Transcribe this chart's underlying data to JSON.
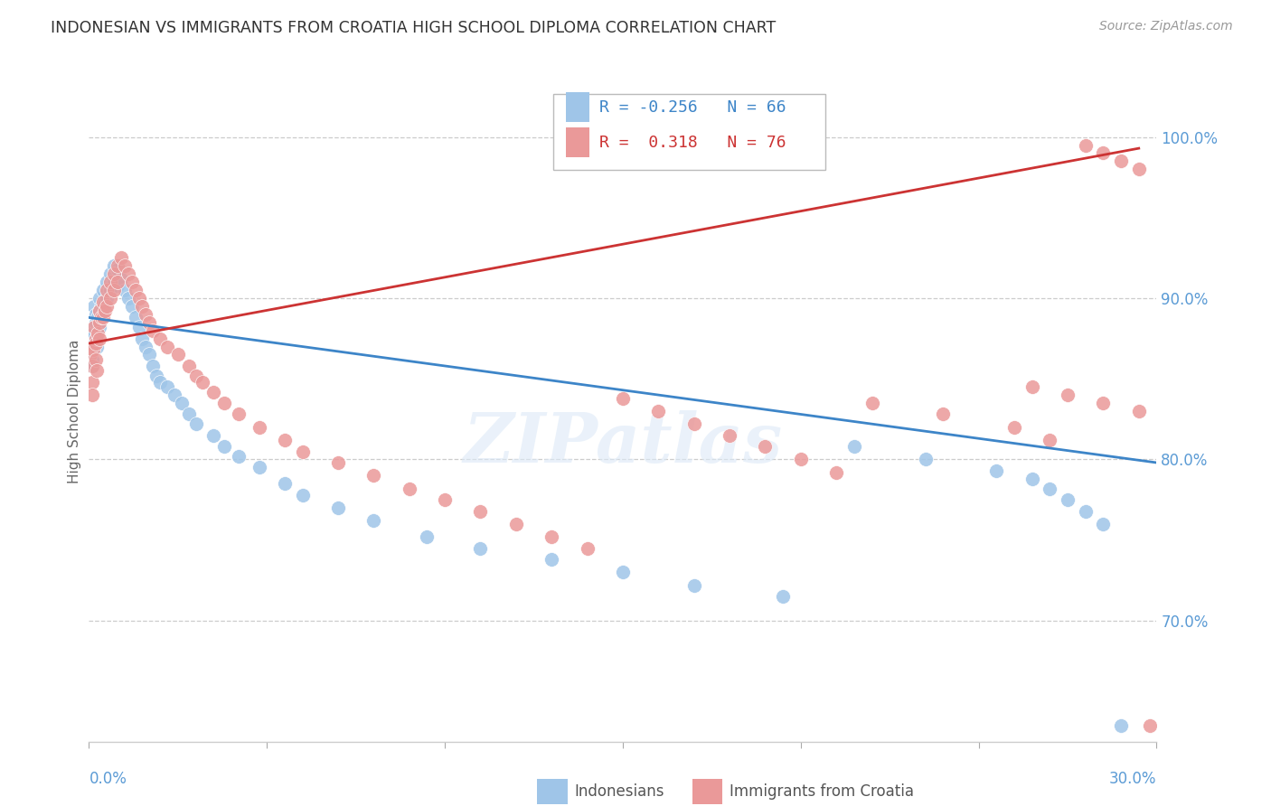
{
  "title": "INDONESIAN VS IMMIGRANTS FROM CROATIA HIGH SCHOOL DIPLOMA CORRELATION CHART",
  "source": "Source: ZipAtlas.com",
  "ylabel": "High School Diploma",
  "ytick_labels": [
    "100.0%",
    "90.0%",
    "80.0%",
    "70.0%"
  ],
  "ytick_values": [
    1.0,
    0.9,
    0.8,
    0.7
  ],
  "xlim": [
    0.0,
    0.3
  ],
  "ylim": [
    0.625,
    1.035
  ],
  "watermark": "ZIPatlas",
  "legend_R1": "-0.256",
  "legend_N1": "66",
  "legend_R2": "0.318",
  "legend_N2": "76",
  "color_blue": "#9fc5e8",
  "color_pink": "#ea9999",
  "trendline_blue": "#3d85c8",
  "trendline_pink": "#cc3333",
  "indonesians_x": [
    0.0005,
    0.0008,
    0.001,
    0.001,
    0.0012,
    0.0015,
    0.0018,
    0.002,
    0.002,
    0.0022,
    0.0025,
    0.003,
    0.003,
    0.003,
    0.0035,
    0.004,
    0.004,
    0.0045,
    0.005,
    0.005,
    0.006,
    0.006,
    0.007,
    0.007,
    0.008,
    0.008,
    0.009,
    0.01,
    0.011,
    0.012,
    0.013,
    0.014,
    0.015,
    0.016,
    0.017,
    0.018,
    0.019,
    0.02,
    0.022,
    0.024,
    0.026,
    0.028,
    0.03,
    0.035,
    0.038,
    0.042,
    0.048,
    0.055,
    0.06,
    0.07,
    0.08,
    0.095,
    0.11,
    0.13,
    0.15,
    0.17,
    0.195,
    0.215,
    0.235,
    0.255,
    0.265,
    0.27,
    0.275,
    0.28,
    0.285,
    0.29
  ],
  "indonesians_y": [
    0.88,
    0.872,
    0.862,
    0.858,
    0.878,
    0.895,
    0.89,
    0.885,
    0.875,
    0.87,
    0.888,
    0.9,
    0.892,
    0.882,
    0.895,
    0.905,
    0.895,
    0.898,
    0.91,
    0.9,
    0.915,
    0.905,
    0.92,
    0.91,
    0.918,
    0.908,
    0.912,
    0.905,
    0.9,
    0.895,
    0.888,
    0.882,
    0.875,
    0.87,
    0.865,
    0.858,
    0.852,
    0.848,
    0.845,
    0.84,
    0.835,
    0.828,
    0.822,
    0.815,
    0.808,
    0.802,
    0.795,
    0.785,
    0.778,
    0.77,
    0.762,
    0.752,
    0.745,
    0.738,
    0.73,
    0.722,
    0.715,
    0.808,
    0.8,
    0.793,
    0.788,
    0.782,
    0.775,
    0.768,
    0.76,
    0.635
  ],
  "croatia_x": [
    0.0005,
    0.0008,
    0.001,
    0.001,
    0.0012,
    0.0015,
    0.0018,
    0.002,
    0.002,
    0.0022,
    0.0025,
    0.003,
    0.003,
    0.003,
    0.0035,
    0.004,
    0.004,
    0.0045,
    0.005,
    0.005,
    0.006,
    0.006,
    0.007,
    0.007,
    0.008,
    0.008,
    0.009,
    0.01,
    0.011,
    0.012,
    0.013,
    0.014,
    0.015,
    0.016,
    0.017,
    0.018,
    0.02,
    0.022,
    0.025,
    0.028,
    0.03,
    0.032,
    0.035,
    0.038,
    0.042,
    0.048,
    0.055,
    0.06,
    0.07,
    0.08,
    0.09,
    0.1,
    0.11,
    0.12,
    0.13,
    0.14,
    0.15,
    0.16,
    0.17,
    0.18,
    0.19,
    0.2,
    0.21,
    0.22,
    0.24,
    0.26,
    0.27,
    0.28,
    0.285,
    0.29,
    0.295,
    0.298,
    0.265,
    0.275,
    0.285,
    0.295
  ],
  "croatia_y": [
    0.865,
    0.858,
    0.848,
    0.84,
    0.868,
    0.882,
    0.875,
    0.872,
    0.862,
    0.855,
    0.878,
    0.892,
    0.885,
    0.875,
    0.888,
    0.898,
    0.888,
    0.892,
    0.905,
    0.895,
    0.91,
    0.9,
    0.915,
    0.905,
    0.92,
    0.91,
    0.925,
    0.92,
    0.915,
    0.91,
    0.905,
    0.9,
    0.895,
    0.89,
    0.885,
    0.88,
    0.875,
    0.87,
    0.865,
    0.858,
    0.852,
    0.848,
    0.842,
    0.835,
    0.828,
    0.82,
    0.812,
    0.805,
    0.798,
    0.79,
    0.782,
    0.775,
    0.768,
    0.76,
    0.752,
    0.745,
    0.838,
    0.83,
    0.822,
    0.815,
    0.808,
    0.8,
    0.792,
    0.835,
    0.828,
    0.82,
    0.812,
    0.995,
    0.99,
    0.985,
    0.98,
    0.635,
    0.845,
    0.84,
    0.835,
    0.83
  ],
  "blue_trend_x": [
    0.0,
    0.3
  ],
  "blue_trend_y": [
    0.888,
    0.798
  ],
  "pink_trend_x": [
    0.0,
    0.295
  ],
  "pink_trend_y": [
    0.872,
    0.993
  ]
}
